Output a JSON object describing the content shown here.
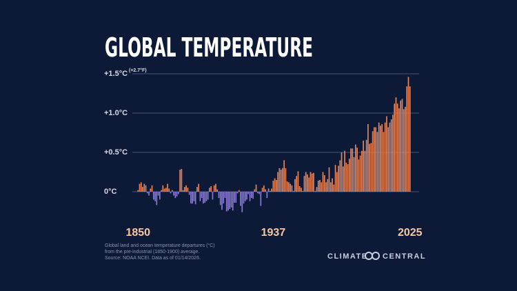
{
  "chart_data": {
    "type": "bar",
    "title": "GLOBAL TEMPERATURE",
    "annotation": "(+2.7°F)",
    "x": [
      1850,
      1851,
      1852,
      1853,
      1854,
      1855,
      1856,
      1857,
      1858,
      1859,
      1860,
      1861,
      1862,
      1863,
      1864,
      1865,
      1866,
      1867,
      1868,
      1869,
      1870,
      1871,
      1872,
      1873,
      1874,
      1875,
      1876,
      1877,
      1878,
      1879,
      1880,
      1881,
      1882,
      1883,
      1884,
      1885,
      1886,
      1887,
      1888,
      1889,
      1890,
      1891,
      1892,
      1893,
      1894,
      1895,
      1896,
      1897,
      1898,
      1899,
      1900,
      1901,
      1902,
      1903,
      1904,
      1905,
      1906,
      1907,
      1908,
      1909,
      1910,
      1911,
      1912,
      1913,
      1914,
      1915,
      1916,
      1917,
      1918,
      1919,
      1920,
      1921,
      1922,
      1923,
      1924,
      1925,
      1926,
      1927,
      1928,
      1929,
      1930,
      1931,
      1932,
      1933,
      1934,
      1935,
      1936,
      1937,
      1938,
      1939,
      1940,
      1941,
      1942,
      1943,
      1944,
      1945,
      1946,
      1947,
      1948,
      1949,
      1950,
      1951,
      1952,
      1953,
      1954,
      1955,
      1956,
      1957,
      1958,
      1959,
      1960,
      1961,
      1962,
      1963,
      1964,
      1965,
      1966,
      1967,
      1968,
      1969,
      1970,
      1971,
      1972,
      1973,
      1974,
      1975,
      1976,
      1977,
      1978,
      1979,
      1980,
      1981,
      1982,
      1983,
      1984,
      1985,
      1986,
      1987,
      1988,
      1989,
      1990,
      1991,
      1992,
      1993,
      1994,
      1995,
      1996,
      1997,
      1998,
      1999,
      2000,
      2001,
      2002,
      2003,
      2004,
      2005,
      2006,
      2007,
      2008,
      2009,
      2010,
      2011,
      2012,
      2013,
      2014,
      2015,
      2016,
      2017,
      2018,
      2019,
      2020,
      2021,
      2022,
      2023,
      2024,
      2025
    ],
    "values": [
      0.02,
      0.1,
      0.12,
      0.06,
      0.1,
      0.08,
      -0.02,
      -0.05,
      0.04,
      0.08,
      -0.1,
      -0.12,
      -0.17,
      -0.05,
      -0.1,
      0.02,
      0.08,
      0.04,
      0.05,
      0.1,
      0.04,
      -0.02,
      0.02,
      -0.05,
      -0.08,
      -0.06,
      -0.03,
      0.28,
      0.29,
      0.02,
      0.06,
      0.08,
      0.05,
      -0.04,
      -0.15,
      -0.15,
      -0.12,
      -0.16,
      0.06,
      0.1,
      -0.12,
      -0.08,
      -0.15,
      -0.14,
      -0.12,
      -0.1,
      0.05,
      0.07,
      -0.1,
      0.08,
      0.1,
      0.03,
      -0.08,
      -0.17,
      -0.23,
      -0.15,
      -0.08,
      -0.25,
      -0.24,
      -0.22,
      -0.2,
      -0.24,
      -0.14,
      -0.14,
      -0.02,
      0.02,
      -0.18,
      -0.26,
      -0.15,
      -0.12,
      -0.1,
      -0.03,
      -0.12,
      -0.08,
      -0.09,
      0.03,
      0.09,
      -0.02,
      -0.03,
      -0.18,
      0.05,
      0.08,
      0.03,
      -0.08,
      0.04,
      0.01,
      0.04,
      0.14,
      0.17,
      0.15,
      0.25,
      0.3,
      0.28,
      0.3,
      0.4,
      0.3,
      0.13,
      0.12,
      0.1,
      0.08,
      0.01,
      0.16,
      0.2,
      0.26,
      0.07,
      0.05,
      0.01,
      0.2,
      0.25,
      0.22,
      0.18,
      0.25,
      0.23,
      0.24,
      0.01,
      0.06,
      0.14,
      0.15,
      0.12,
      0.25,
      0.21,
      0.12,
      0.16,
      0.31,
      0.12,
      0.17,
      0.09,
      0.34,
      0.25,
      0.33,
      0.4,
      0.5,
      0.32,
      0.52,
      0.37,
      0.35,
      0.42,
      0.55,
      0.55,
      0.44,
      0.6,
      0.56,
      0.41,
      0.46,
      0.52,
      0.65,
      0.52,
      0.66,
      0.86,
      0.61,
      0.62,
      0.77,
      0.82,
      0.82,
      0.76,
      0.88,
      0.84,
      0.86,
      0.76,
      0.88,
      0.96,
      0.82,
      0.88,
      0.92,
      0.98,
      1.12,
      1.2,
      1.12,
      1.06,
      1.16,
      1.18,
      1.05,
      1.08,
      1.34,
      1.46,
      1.34
    ],
    "positive_color": "#e8845a",
    "negative_color": "#8b79d9",
    "xlim": [
      1849,
      2026
    ],
    "xticks": [
      1850,
      1937,
      2025
    ],
    "ylim": [
      -0.3,
      1.6
    ],
    "yticks": [
      {
        "value": 0,
        "label": "0°C"
      },
      {
        "value": 0.5,
        "label": "+0.5°C"
      },
      {
        "value": 1.0,
        "label": "+1.0°C"
      },
      {
        "value": 1.5,
        "label": "+1.5°C"
      }
    ],
    "grid": true,
    "notes": [
      "Global land and ocean temperature departures (°C)",
      "from the pre-industrial (1850-1900) average.",
      "Source: NOAA NCEI. Data as of 01/14/2026."
    ],
    "brand": [
      "CLIMATE",
      "CENTRAL"
    ]
  }
}
